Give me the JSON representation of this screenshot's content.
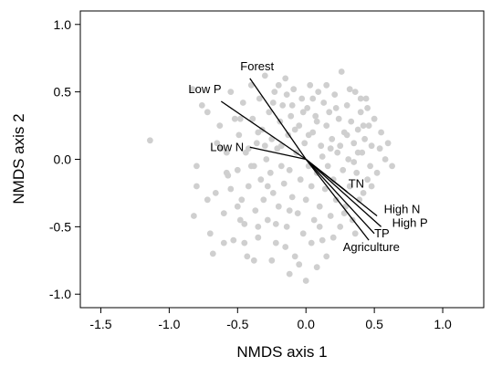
{
  "chart_data": {
    "type": "scatter",
    "xlabel": "NMDS axis 1",
    "ylabel": "NMDS axis 2",
    "xlim": [
      -1.65,
      1.3
    ],
    "ylim": [
      -1.1,
      1.1
    ],
    "xticks": [
      -1.5,
      -1.0,
      -0.5,
      0.0,
      0.5,
      1.0
    ],
    "xtick_labels": [
      "-1.5",
      "-1.0",
      "-0.5",
      "0.0",
      "0.5",
      "1.0"
    ],
    "yticks": [
      -1.0,
      -0.5,
      0.0,
      0.5,
      1.0
    ],
    "ytick_labels": [
      "-1.0",
      "-0.5",
      "0.0",
      "0.5",
      "1.0"
    ],
    "grid": false,
    "point_color": "#cfcfcf",
    "vector_color": "#000000",
    "vectors": [
      {
        "name": "Forest",
        "x": -0.41,
        "y": 0.6,
        "label_x": -0.48,
        "label_y": 0.66,
        "anchor": "start"
      },
      {
        "name": "Low P",
        "x": -0.62,
        "y": 0.43,
        "label_x": -0.86,
        "label_y": 0.49,
        "anchor": "start"
      },
      {
        "name": "Low N",
        "x": -0.41,
        "y": 0.09,
        "label_x": -0.7,
        "label_y": 0.06,
        "anchor": "start"
      },
      {
        "name": "TN",
        "x": 0.3,
        "y": -0.24,
        "label_x": 0.31,
        "label_y": -0.21,
        "anchor": "start"
      },
      {
        "name": "High N",
        "x": 0.52,
        "y": -0.42,
        "label_x": 0.57,
        "label_y": -0.4,
        "anchor": "start"
      },
      {
        "name": "High P",
        "x": 0.55,
        "y": -0.5,
        "label_x": 0.63,
        "label_y": -0.5,
        "anchor": "start"
      },
      {
        "name": "TP",
        "x": 0.5,
        "y": -0.55,
        "label_x": 0.5,
        "label_y": -0.58,
        "anchor": "start"
      },
      {
        "name": "Agriculture",
        "x": 0.46,
        "y": -0.6,
        "label_x": 0.27,
        "label_y": -0.68,
        "anchor": "start"
      }
    ],
    "points": [
      [
        -1.14,
        0.14
      ],
      [
        -0.83,
        0.52
      ],
      [
        -0.8,
        -0.2
      ],
      [
        -0.82,
        -0.42
      ],
      [
        -0.8,
        -0.05
      ],
      [
        -0.76,
        0.4
      ],
      [
        -0.72,
        0.35
      ],
      [
        -0.7,
        -0.55
      ],
      [
        -0.68,
        -0.7
      ],
      [
        -0.66,
        -0.25
      ],
      [
        -0.63,
        0.25
      ],
      [
        -0.6,
        -0.4
      ],
      [
        -0.58,
        0.05
      ],
      [
        -0.57,
        -0.12
      ],
      [
        -0.55,
        0.5
      ],
      [
        -0.53,
        -0.6
      ],
      [
        -0.52,
        0.3
      ],
      [
        -0.5,
        -0.08
      ],
      [
        -0.49,
        0.18
      ],
      [
        -0.47,
        -0.3
      ],
      [
        -0.46,
        0.42
      ],
      [
        -0.45,
        -0.48
      ],
      [
        -0.44,
        0.05
      ],
      [
        -0.43,
        -0.72
      ],
      [
        -0.42,
        -0.2
      ],
      [
        -0.4,
        0.55
      ],
      [
        -0.39,
        0.3
      ],
      [
        -0.38,
        -0.05
      ],
      [
        -0.37,
        -0.38
      ],
      [
        -0.36,
        0.12
      ],
      [
        -0.35,
        -0.58
      ],
      [
        -0.34,
        0.45
      ],
      [
        -0.33,
        -0.15
      ],
      [
        -0.32,
        0.22
      ],
      [
        -0.31,
        -0.3
      ],
      [
        -0.3,
        0.62
      ],
      [
        -0.29,
        0.0
      ],
      [
        -0.28,
        -0.45
      ],
      [
        -0.27,
        0.35
      ],
      [
        -0.26,
        -0.1
      ],
      [
        -0.25,
        0.15
      ],
      [
        -0.24,
        -0.25
      ],
      [
        -0.23,
        0.5
      ],
      [
        -0.22,
        -0.62
      ],
      [
        -0.21,
        0.08
      ],
      [
        -0.2,
        -0.35
      ],
      [
        -0.19,
        0.28
      ],
      [
        -0.18,
        -0.05
      ],
      [
        -0.17,
        0.4
      ],
      [
        -0.16,
        -0.18
      ],
      [
        -0.15,
        0.6
      ],
      [
        -0.14,
        -0.5
      ],
      [
        -0.13,
        0.18
      ],
      [
        -0.12,
        -0.08
      ],
      [
        -0.11,
        0.32
      ],
      [
        -0.1,
        -0.28
      ],
      [
        -0.09,
        0.52
      ],
      [
        -0.08,
        -0.72
      ],
      [
        -0.07,
        0.05
      ],
      [
        -0.06,
        -0.4
      ],
      [
        -0.05,
        0.25
      ],
      [
        -0.04,
        -0.15
      ],
      [
        -0.03,
        0.45
      ],
      [
        -0.02,
        -0.55
      ],
      [
        -0.01,
        0.12
      ],
      [
        0.0,
        -0.3
      ],
      [
        0.01,
        0.38
      ],
      [
        0.02,
        -0.05
      ],
      [
        0.03,
        0.55
      ],
      [
        0.04,
        -0.2
      ],
      [
        0.05,
        0.2
      ],
      [
        0.06,
        -0.45
      ],
      [
        0.07,
        0.32
      ],
      [
        0.08,
        -0.1
      ],
      [
        0.09,
        0.5
      ],
      [
        0.1,
        -0.35
      ],
      [
        0.11,
        0.1
      ],
      [
        0.12,
        -0.6
      ],
      [
        0.13,
        0.42
      ],
      [
        0.14,
        -0.22
      ],
      [
        0.15,
        0.25
      ],
      [
        0.16,
        -0.05
      ],
      [
        0.17,
        0.35
      ],
      [
        0.18,
        -0.42
      ],
      [
        0.19,
        0.15
      ],
      [
        0.2,
        -0.15
      ],
      [
        0.21,
        0.48
      ],
      [
        0.22,
        -0.3
      ],
      [
        0.23,
        0.05
      ],
      [
        0.24,
        0.3
      ],
      [
        0.25,
        -0.5
      ],
      [
        0.26,
        0.65
      ],
      [
        0.27,
        -0.08
      ],
      [
        0.28,
        0.2
      ],
      [
        0.29,
        -0.35
      ],
      [
        0.3,
        0.4
      ],
      [
        0.31,
        0.0
      ],
      [
        0.32,
        -0.2
      ],
      [
        0.33,
        0.28
      ],
      [
        0.34,
        -0.45
      ],
      [
        0.35,
        0.12
      ],
      [
        0.36,
        0.5
      ],
      [
        0.37,
        -0.1
      ],
      [
        0.38,
        0.22
      ],
      [
        0.39,
        -0.3
      ],
      [
        0.4,
        0.35
      ],
      [
        0.41,
        0.05
      ],
      [
        0.42,
        -0.25
      ],
      [
        0.43,
        0.15
      ],
      [
        0.44,
        0.45
      ],
      [
        0.45,
        -0.15
      ],
      [
        0.46,
        0.25
      ],
      [
        0.47,
        -0.05
      ],
      [
        0.48,
        0.1
      ],
      [
        0.5,
        0.3
      ],
      [
        0.52,
        -0.1
      ],
      [
        0.55,
        0.2
      ],
      [
        0.58,
        0.0
      ],
      [
        0.6,
        0.12
      ],
      [
        0.63,
        -0.05
      ],
      [
        -0.38,
        -0.75
      ],
      [
        -0.25,
        -0.75
      ],
      [
        -0.12,
        -0.85
      ],
      [
        0.0,
        -0.9
      ],
      [
        0.08,
        -0.8
      ],
      [
        0.15,
        -0.72
      ],
      [
        -0.45,
        -0.62
      ],
      [
        -0.35,
        -0.5
      ],
      [
        -0.15,
        -0.65
      ],
      [
        -0.05,
        -0.78
      ],
      [
        -0.62,
        0.08
      ],
      [
        -0.55,
        -0.22
      ],
      [
        -0.48,
        0.3
      ],
      [
        -0.4,
        -0.05
      ],
      [
        -0.3,
        0.1
      ],
      [
        -0.2,
        0.55
      ],
      [
        -0.1,
        0.4
      ],
      [
        0.05,
        0.45
      ],
      [
        0.15,
        0.55
      ],
      [
        0.22,
        0.38
      ],
      [
        0.3,
        0.18
      ],
      [
        0.38,
        0.05
      ],
      [
        0.45,
        0.38
      ],
      [
        0.35,
        -0.02
      ],
      [
        0.25,
        0.1
      ],
      [
        0.12,
        0.02
      ],
      [
        0.02,
        0.18
      ],
      [
        -0.08,
        0.22
      ],
      [
        -0.18,
        0.1
      ],
      [
        -0.28,
        -0.2
      ],
      [
        -0.35,
        0.2
      ],
      [
        -0.42,
        0.08
      ],
      [
        -0.5,
        -0.35
      ],
      [
        -0.58,
        -0.1
      ],
      [
        -0.65,
        0.12
      ],
      [
        -0.72,
        -0.3
      ],
      [
        -0.6,
        -0.62
      ],
      [
        -0.48,
        -0.45
      ],
      [
        -0.22,
        -0.48
      ],
      [
        -0.12,
        -0.38
      ],
      [
        0.04,
        -0.62
      ],
      [
        0.1,
        -0.5
      ],
      [
        0.2,
        -0.58
      ],
      [
        0.28,
        -0.4
      ],
      [
        0.36,
        -0.55
      ],
      [
        0.18,
        0.08
      ],
      [
        0.08,
        0.28
      ],
      [
        -0.02,
        0.35
      ],
      [
        -0.14,
        0.48
      ],
      [
        -0.24,
        0.42
      ],
      [
        0.32,
        0.52
      ],
      [
        0.42,
        0.25
      ],
      [
        0.48,
        -0.2
      ],
      [
        0.54,
        0.08
      ],
      [
        0.4,
        0.45
      ]
    ]
  }
}
